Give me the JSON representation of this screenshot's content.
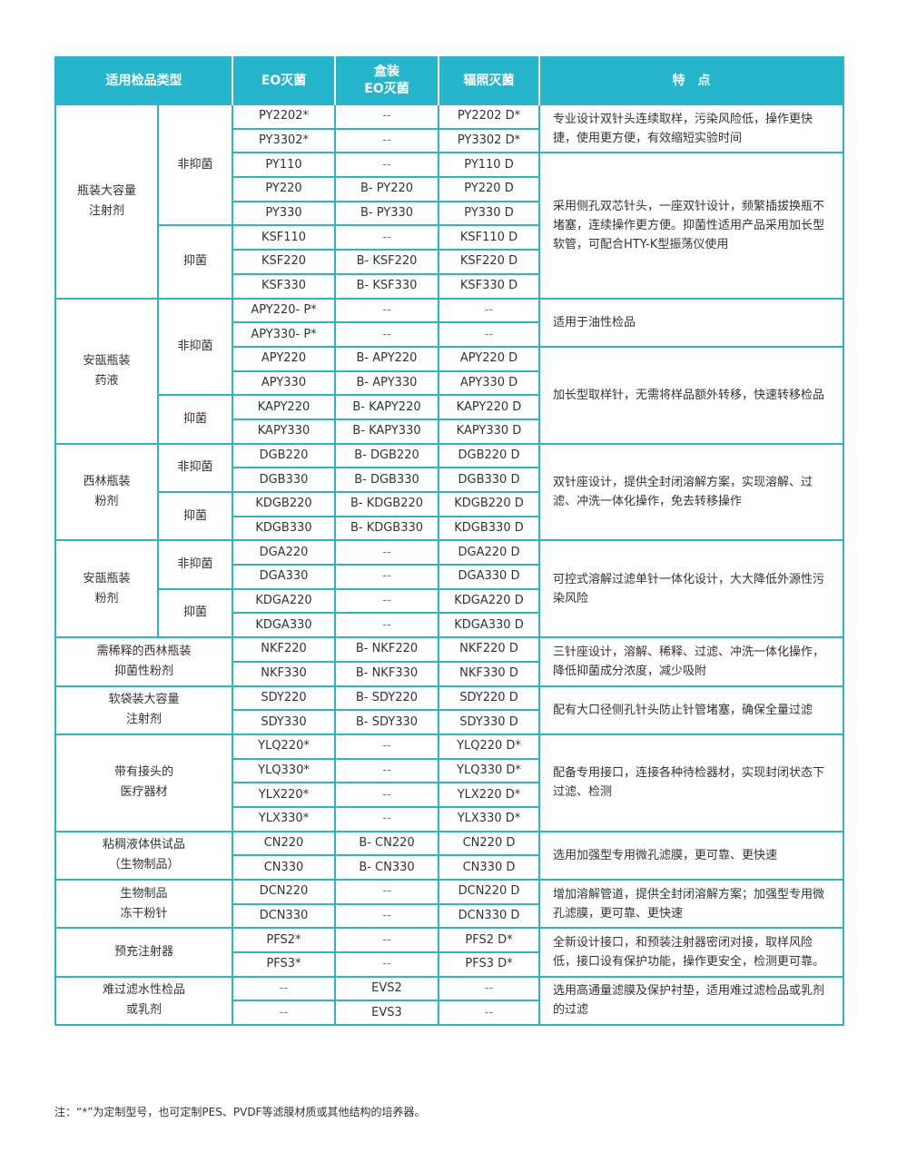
{
  "header": {
    "category": "适用检品类型",
    "eo": "EO灭菌",
    "boxed_eo": "盒装\nEO灭菌",
    "irradiation": "辐照灭菌",
    "features": "特　点"
  },
  "colors": {
    "header_bg": "#25b5cc",
    "border": "#2cb4ca"
  },
  "groups": [
    {
      "category": "瓶装大容量\n注射剂",
      "subs": [
        {
          "label": "非抑菌",
          "span": 5
        },
        {
          "label": "抑菌",
          "span": 3
        }
      ],
      "features": [
        {
          "text": "专业设计双针头连续取样，污染风险低，操作更快捷，使用更方便，有效缩短实验时间",
          "span": 2
        },
        {
          "text": "采用侧孔双芯针头，一座双针设计，频繁插拔换瓶不堵塞，连续操作更方便。抑菌性适用产品采用加长型软管，可配合HTY-K型振荡仪使用",
          "span": 6
        }
      ],
      "rows": [
        [
          "PY2202*",
          "--",
          "PY2202 D*"
        ],
        [
          "PY3302*",
          "--",
          "PY3302 D*"
        ],
        [
          "PY110",
          "--",
          "PY110 D"
        ],
        [
          "PY220",
          "B- PY220",
          "PY220 D"
        ],
        [
          "PY330",
          "B- PY330",
          "PY330 D"
        ],
        [
          "KSF110",
          "--",
          "KSF110 D"
        ],
        [
          "KSF220",
          "B- KSF220",
          "KSF220 D"
        ],
        [
          "KSF330",
          "B- KSF330",
          "KSF330 D"
        ]
      ]
    },
    {
      "category": "安瓿瓶装\n药液",
      "subs": [
        {
          "label": "非抑菌",
          "span": 4
        },
        {
          "label": "抑菌",
          "span": 2
        }
      ],
      "features": [
        {
          "text": "适用于油性检品",
          "span": 2
        },
        {
          "text": "加长型取样针，无需将样品额外转移，快速转移检品",
          "span": 4
        }
      ],
      "rows": [
        [
          "APY220- P*",
          "--",
          "--"
        ],
        [
          "APY330- P*",
          "--",
          "--"
        ],
        [
          "APY220",
          "B- APY220",
          "APY220 D"
        ],
        [
          "APY330",
          "B- APY330",
          "APY330 D"
        ],
        [
          "KAPY220",
          "B- KAPY220",
          "KAPY220 D"
        ],
        [
          "KAPY330",
          "B- KAPY330",
          "KAPY330 D"
        ]
      ]
    },
    {
      "category": "西林瓶装\n粉剂",
      "subs": [
        {
          "label": "非抑菌",
          "span": 2
        },
        {
          "label": "抑菌",
          "span": 2
        }
      ],
      "features": [
        {
          "text": "双针座设计，提供全封闭溶解方案，实现溶解、过滤、冲洗一体化操作，免去转移操作",
          "span": 4
        }
      ],
      "rows": [
        [
          "DGB220",
          "B- DGB220",
          "DGB220 D"
        ],
        [
          "DGB330",
          "B- DGB330",
          "DGB330 D"
        ],
        [
          "KDGB220",
          "B- KDGB220",
          "KDGB220 D"
        ],
        [
          "KDGB330",
          "B- KDGB330",
          "KDGB330 D"
        ]
      ]
    },
    {
      "category": "安瓿瓶装\n粉剂",
      "subs": [
        {
          "label": "非抑菌",
          "span": 2
        },
        {
          "label": "抑菌",
          "span": 2
        }
      ],
      "features": [
        {
          "text": "可控式溶解过滤单针一体化设计，大大降低外源性污染风险",
          "span": 4
        }
      ],
      "rows": [
        [
          "DGA220",
          "--",
          "DGA220 D"
        ],
        [
          "DGA330",
          "--",
          "DGA330 D"
        ],
        [
          "KDGA220",
          "--",
          "KDGA220 D"
        ],
        [
          "KDGA330",
          "--",
          "KDGA330 D"
        ]
      ]
    },
    {
      "category": "需稀释的西林瓶装\n抑菌性粉剂",
      "subs": [],
      "features": [
        {
          "text": "三针座设计，溶解、稀释、过滤、冲洗一体化操作，降低抑菌成分浓度，减少吸附",
          "span": 2
        }
      ],
      "rows": [
        [
          "NKF220",
          "B- NKF220",
          "NKF220 D"
        ],
        [
          "NKF330",
          "B- NKF330",
          "NKF330 D"
        ]
      ]
    },
    {
      "category": "软袋装大容量\n注射剂",
      "subs": [],
      "features": [
        {
          "text": "配有大口径侧孔针头防止针管堵塞，确保全量过滤",
          "span": 2
        }
      ],
      "rows": [
        [
          "SDY220",
          "B- SDY220",
          "SDY220 D"
        ],
        [
          "SDY330",
          "B- SDY330",
          "SDY330 D"
        ]
      ]
    },
    {
      "category": "带有接头的\n医疗器材",
      "subs": [],
      "features": [
        {
          "text": "配备专用接口，连接各种待检器材，实现封闭状态下过滤、检测",
          "span": 4
        }
      ],
      "rows": [
        [
          "YLQ220*",
          "--",
          "YLQ220 D*"
        ],
        [
          "YLQ330*",
          "--",
          "YLQ330 D*"
        ],
        [
          "YLX220*",
          "--",
          "YLX220 D*"
        ],
        [
          "YLX330*",
          "--",
          "YLX330 D*"
        ]
      ]
    },
    {
      "category": "粘稠液体供试品\n（生物制品）",
      "subs": [],
      "features": [
        {
          "text": "选用加强型专用微孔滤膜，更可靠、更快速",
          "span": 2
        }
      ],
      "rows": [
        [
          "CN220",
          "B- CN220",
          "CN220 D"
        ],
        [
          "CN330",
          "B- CN330",
          "CN330 D"
        ]
      ]
    },
    {
      "category": "生物制品\n冻干粉针",
      "subs": [],
      "features": [
        {
          "text": "增加溶解管道，提供全封闭溶解方案；加强型专用微孔滤膜，更可靠、更快速",
          "span": 2
        }
      ],
      "rows": [
        [
          "DCN220",
          "--",
          "DCN220 D"
        ],
        [
          "DCN330",
          "--",
          "DCN330 D"
        ]
      ]
    },
    {
      "category": "预充注射器",
      "subs": [],
      "features": [
        {
          "text": "全新设计接口，和预装注射器密闭对接，取样风险低，接口设有保护功能，操作更安全，检测更可靠。",
          "span": 2
        }
      ],
      "rows": [
        [
          "PFS2*",
          "--",
          "PFS2 D*"
        ],
        [
          "PFS3*",
          "--",
          "PFS3 D*"
        ]
      ]
    },
    {
      "category": "难过滤水性检品\n或乳剂",
      "subs": [],
      "features": [
        {
          "text": "选用高通量滤膜及保护衬垫，适用难过滤检品或乳剂的过滤",
          "span": 2
        }
      ],
      "rows": [
        [
          "--",
          "EVS2",
          "--"
        ],
        [
          "--",
          "EVS3",
          "--"
        ]
      ]
    }
  ],
  "note": "注：“*”为定制型号，也可定制PES、PVDF等滤膜材质或其他结构的培养器。"
}
